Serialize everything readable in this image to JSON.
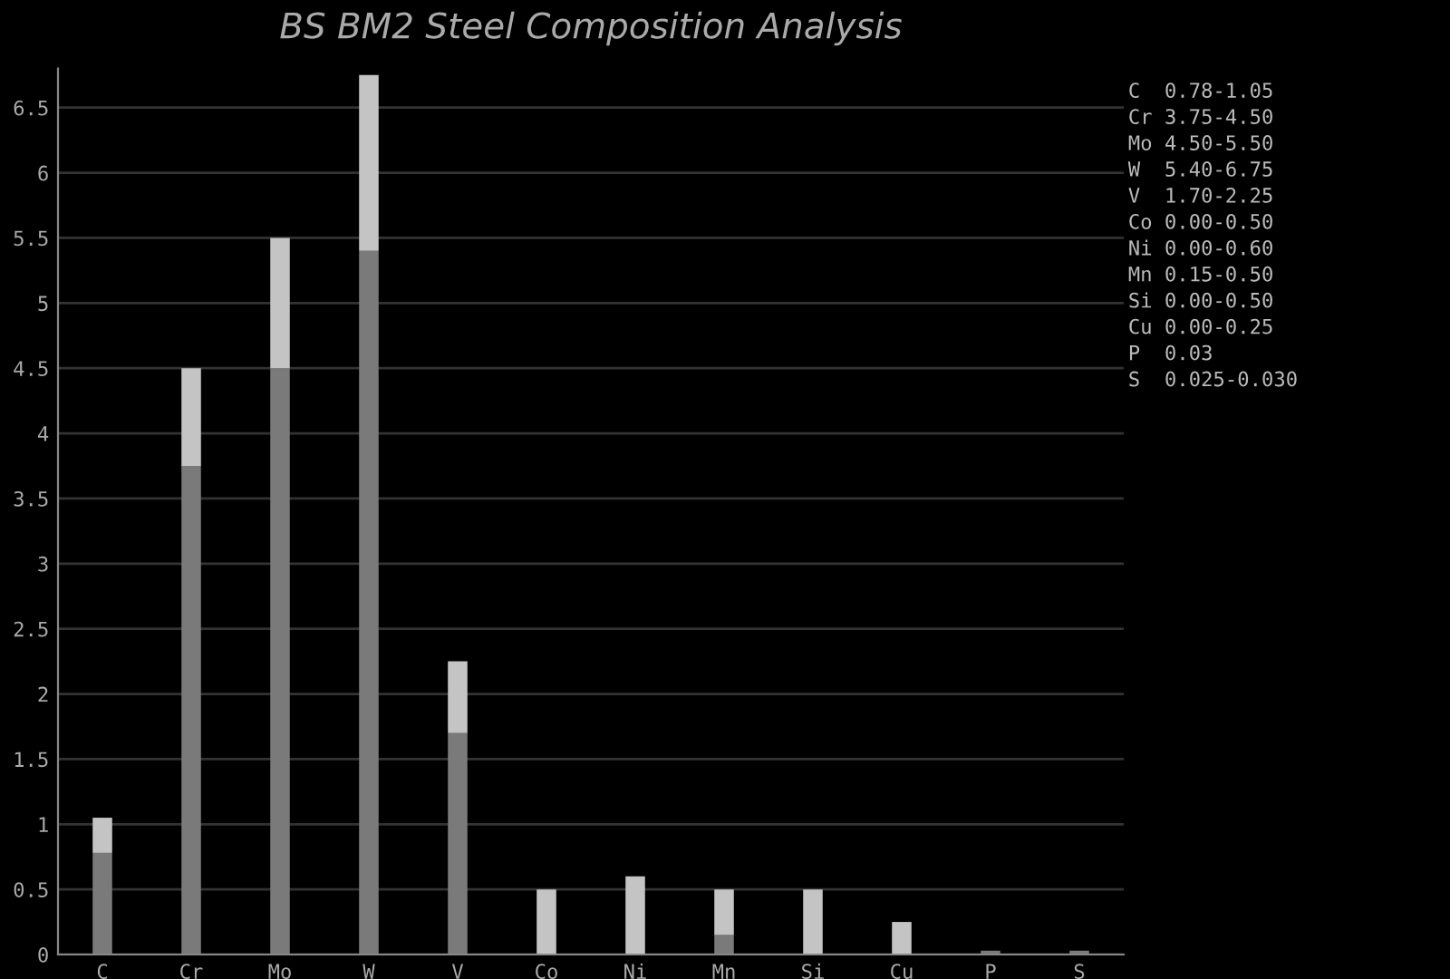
{
  "chart_data": {
    "type": "bar",
    "title": "BS BM2 Steel Composition Analysis",
    "stacked": true,
    "categories": [
      "C",
      "Cr",
      "Mo",
      "W",
      "V",
      "Co",
      "Ni",
      "Mn",
      "Si",
      "Cu",
      "P",
      "S"
    ],
    "series": [
      {
        "color": "#7a7a7a",
        "values": [
          0.78,
          3.75,
          4.5,
          5.4,
          1.7,
          0,
          0,
          0.15,
          0,
          0,
          0.03,
          0.03
        ]
      },
      {
        "color": "#c4c4c4",
        "values": [
          0.27,
          0.75,
          1.0,
          1.35,
          0.55,
          0.5,
          0.6,
          0.35,
          0.5,
          0.25,
          0,
          0
        ]
      }
    ],
    "ylim": [
      0,
      6.8
    ],
    "yticks": [
      0,
      0.5,
      1,
      1.5,
      2,
      2.5,
      3,
      3.5,
      4,
      4.5,
      5,
      5.5,
      6,
      6.5
    ],
    "grid": "y",
    "annotations": [
      "C  0.78-1.05",
      "Cr 3.75-4.50",
      "Mo 4.50-5.50",
      "W  5.40-6.75",
      "V  1.70-2.25",
      "Co 0.00-0.50",
      "Ni 0.00-0.60",
      "Mn 0.15-0.50",
      "Si 0.00-0.50",
      "Cu 0.00-0.25",
      "P  0.03",
      "S  0.025-0.030"
    ]
  }
}
